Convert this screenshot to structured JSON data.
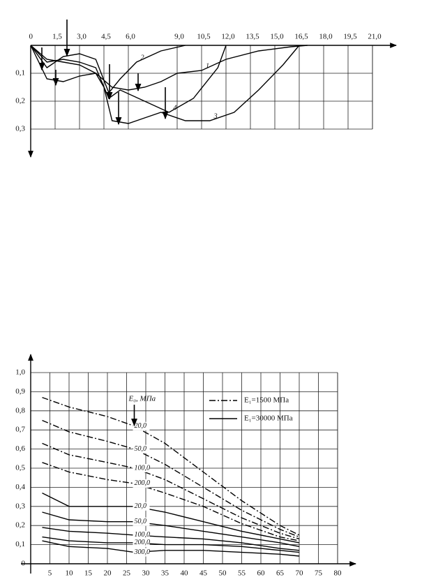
{
  "chart_data": [
    {
      "type": "line",
      "y_inverted": true,
      "xlim": [
        0,
        21
      ],
      "ylim": [
        0,
        0.3
      ],
      "xticks": [
        {
          "value": 0,
          "label": "0"
        },
        {
          "value": 1.5,
          "label": "1,5"
        },
        {
          "value": 3,
          "label": "3,0"
        },
        {
          "value": 4.5,
          "label": "4,5"
        },
        {
          "value": 6,
          "label": "6,0"
        },
        {
          "value": 9,
          "label": "9,0"
        },
        {
          "value": 10.5,
          "label": "10,5"
        },
        {
          "value": 12,
          "label": "12,0"
        },
        {
          "value": 13.5,
          "label": "13,5"
        },
        {
          "value": 15,
          "label": "15,0"
        },
        {
          "value": 16.5,
          "label": "16,5"
        },
        {
          "value": 18,
          "label": "18,0"
        },
        {
          "value": 19.5,
          "label": "19,5"
        },
        {
          "value": 21,
          "label": "21,0"
        }
      ],
      "yticks": [
        {
          "value": 0.1,
          "label": "0,1"
        },
        {
          "value": 0.2,
          "label": "0,2"
        },
        {
          "value": 0.3,
          "label": "0,3"
        }
      ],
      "grid": true,
      "series": [
        {
          "name": "1",
          "x": [
            0,
            1,
            2,
            3,
            4,
            5,
            6,
            7,
            8,
            9,
            10.5,
            12,
            14,
            16,
            17
          ],
          "values": [
            0,
            0.05,
            0.06,
            0.07,
            0.1,
            0.15,
            0.16,
            0.15,
            0.13,
            0.1,
            0.09,
            0.05,
            0.02,
            0.005,
            0
          ]
        },
        {
          "name": "2",
          "x": [
            0,
            1,
            2,
            3,
            4,
            4.8,
            5.5,
            6.5,
            8,
            9.5
          ],
          "values": [
            0,
            0.08,
            0.04,
            0.03,
            0.05,
            0.17,
            0.12,
            0.06,
            0.02,
            0
          ]
        },
        {
          "name": "3",
          "x": [
            0,
            1,
            2,
            3,
            4,
            4.5,
            5,
            6,
            7,
            8,
            9.5,
            11,
            12.5,
            14,
            15.5,
            16.5
          ],
          "values": [
            0,
            0.12,
            0.13,
            0.11,
            0.1,
            0.15,
            0.27,
            0.28,
            0.26,
            0.24,
            0.27,
            0.27,
            0.24,
            0.16,
            0.07,
            0
          ]
        },
        {
          "name": "4",
          "x": [
            0,
            1,
            2,
            3,
            4,
            4.8,
            5.5,
            7,
            8.5,
            10,
            11.5,
            12
          ],
          "values": [
            0,
            0.06,
            0.05,
            0.06,
            0.08,
            0.19,
            0.16,
            0.2,
            0.24,
            0.19,
            0.08,
            0
          ]
        }
      ]
    },
    {
      "type": "line",
      "xlim": [
        0,
        80
      ],
      "ylim": [
        0,
        1
      ],
      "xticks": [
        5,
        10,
        15,
        20,
        25,
        30,
        35,
        40,
        45,
        50,
        55,
        60,
        65,
        70,
        75,
        80
      ],
      "yticks": [
        0,
        {
          "value": 0.1,
          "label": "0,1"
        },
        {
          "value": 0.2,
          "label": "0,2"
        },
        {
          "value": 0.3,
          "label": "0,3"
        },
        {
          "value": 0.4,
          "label": "0,4"
        },
        {
          "value": 0.5,
          "label": "0,5"
        },
        {
          "value": 0.6,
          "label": "0,6"
        },
        {
          "value": 0.7,
          "label": "0,7"
        },
        {
          "value": 0.8,
          "label": "0,8"
        },
        {
          "value": 0.9,
          "label": "0,9"
        },
        {
          "value": 1.0,
          "label": "1,0"
        }
      ],
      "grid": true,
      "annotation": "E₀, МПа",
      "legend": [
        {
          "label": "E₁=1500 МПа",
          "style": "dashdot"
        },
        {
          "label": "E₁=30000 МПа",
          "style": "solid"
        }
      ],
      "x": [
        3,
        10,
        20,
        27,
        35,
        45,
        55,
        65,
        70
      ],
      "series": [
        {
          "name": "20,0",
          "style": "dashdot",
          "values": [
            0.87,
            0.82,
            0.77,
            0.72,
            0.63,
            0.48,
            0.33,
            0.2,
            0.15
          ]
        },
        {
          "name": "50,0",
          "style": "dashdot",
          "values": [
            0.75,
            0.69,
            0.64,
            0.6,
            0.52,
            0.4,
            0.28,
            0.18,
            0.14
          ]
        },
        {
          "name": "100,0",
          "style": "dashdot",
          "values": [
            0.63,
            0.57,
            0.53,
            0.5,
            0.44,
            0.34,
            0.24,
            0.16,
            0.13
          ]
        },
        {
          "name": "200,0",
          "style": "dashdot",
          "values": [
            0.53,
            0.48,
            0.44,
            0.42,
            0.37,
            0.3,
            0.21,
            0.14,
            0.12
          ]
        },
        {
          "name": "20,0",
          "style": "solid",
          "values": [
            0.37,
            0.3,
            0.3,
            0.3,
            0.27,
            0.22,
            0.17,
            0.13,
            0.11
          ]
        },
        {
          "name": "50,0",
          "style": "solid",
          "values": [
            0.27,
            0.23,
            0.22,
            0.22,
            0.2,
            0.17,
            0.14,
            0.11,
            0.09
          ]
        },
        {
          "name": "100,0",
          "style": "solid",
          "values": [
            0.19,
            0.17,
            0.16,
            0.15,
            0.14,
            0.13,
            0.11,
            0.08,
            0.07
          ]
        },
        {
          "name": "200,0",
          "style": "solid",
          "values": [
            0.14,
            0.12,
            0.11,
            0.11,
            0.1,
            0.1,
            0.09,
            0.07,
            0.06
          ]
        },
        {
          "name": "300,0",
          "style": "solid",
          "values": [
            0.12,
            0.09,
            0.08,
            0.06,
            0.07,
            0.07,
            0.06,
            0.05,
            0.04
          ]
        }
      ]
    }
  ]
}
